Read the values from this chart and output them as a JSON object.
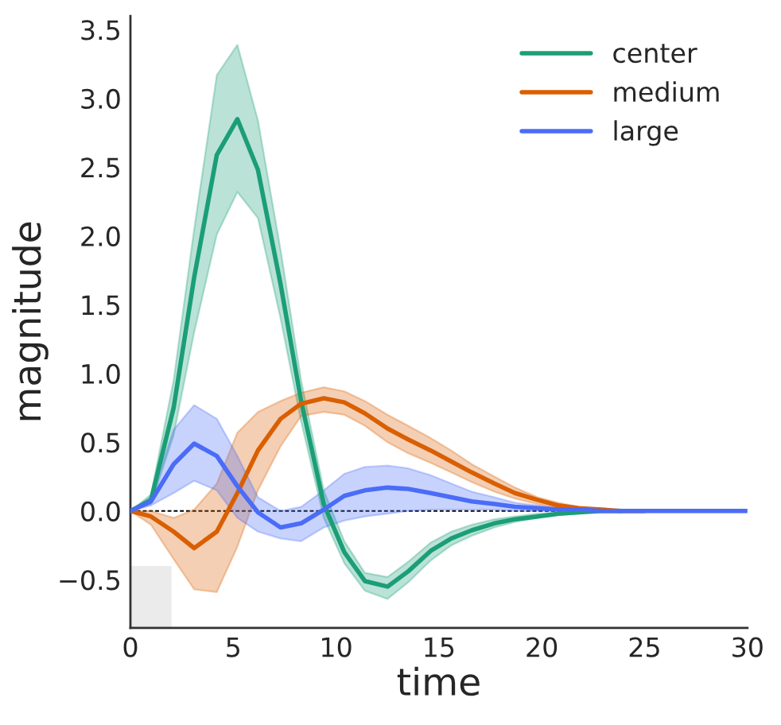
{
  "chart_data": {
    "type": "line",
    "xlabel": "time",
    "ylabel": "magnitude",
    "x": [
      0,
      1,
      2.1,
      3.1,
      4.2,
      5.2,
      6.2,
      7.3,
      8.3,
      9.4,
      10.4,
      11.4,
      12.5,
      13.5,
      14.6,
      15.6,
      16.6,
      17.7,
      18.7,
      19.8,
      20.8,
      21.8,
      22.9,
      23.9,
      25,
      26,
      27,
      28.1,
      29.1,
      30
    ],
    "series": [
      {
        "name": "center",
        "color": "#1b9e77",
        "values": [
          0,
          0.08,
          0.75,
          1.7,
          2.59,
          2.85,
          2.48,
          1.65,
          0.8,
          0.05,
          -0.3,
          -0.51,
          -0.55,
          -0.44,
          -0.29,
          -0.2,
          -0.14,
          -0.09,
          -0.06,
          -0.04,
          -0.02,
          -0.01,
          0,
          0,
          null,
          null,
          null,
          null,
          null,
          null
        ],
        "lower": [
          0,
          0.05,
          0.55,
          1.3,
          2.01,
          2.32,
          2.13,
          1.4,
          0.65,
          -0.05,
          -0.38,
          -0.58,
          -0.64,
          -0.52,
          -0.36,
          -0.25,
          -0.18,
          -0.12,
          -0.08,
          -0.05,
          -0.03,
          -0.02,
          0,
          0,
          null,
          null,
          null,
          null,
          null,
          null
        ],
        "upper": [
          0,
          0.12,
          0.95,
          2.05,
          3.17,
          3.39,
          2.84,
          1.9,
          0.95,
          0.15,
          -0.22,
          -0.45,
          -0.48,
          -0.37,
          -0.23,
          -0.15,
          -0.1,
          -0.06,
          -0.04,
          -0.02,
          -0.01,
          0,
          0,
          0,
          null,
          null,
          null,
          null,
          null,
          null
        ]
      },
      {
        "name": "medium",
        "color": "#d95f02",
        "values": [
          0,
          -0.04,
          -0.15,
          -0.27,
          -0.15,
          0.13,
          0.44,
          0.67,
          0.78,
          0.82,
          0.79,
          0.71,
          0.6,
          0.52,
          0.44,
          0.36,
          0.28,
          0.2,
          0.13,
          0.08,
          0.04,
          0.02,
          0.01,
          0,
          0,
          null,
          null,
          null,
          null,
          null
        ],
        "lower": [
          0,
          -0.1,
          -0.35,
          -0.57,
          -0.59,
          -0.26,
          0.15,
          0.47,
          0.69,
          0.72,
          0.7,
          0.62,
          0.5,
          0.42,
          0.35,
          0.28,
          0.21,
          0.14,
          0.09,
          0.05,
          0.02,
          0.01,
          0,
          0,
          0,
          null,
          null,
          null,
          null,
          null
        ],
        "upper": [
          0,
          0,
          -0.05,
          0.01,
          0.2,
          0.57,
          0.72,
          0.8,
          0.86,
          0.9,
          0.87,
          0.8,
          0.7,
          0.62,
          0.53,
          0.44,
          0.34,
          0.25,
          0.17,
          0.1,
          0.06,
          0.03,
          0.01,
          0,
          0,
          null,
          null,
          null,
          null,
          null
        ]
      },
      {
        "name": "large",
        "color": "#4a6cf7",
        "values": [
          0,
          0.07,
          0.34,
          0.49,
          0.4,
          0.18,
          -0.01,
          -0.12,
          -0.09,
          0.01,
          0.11,
          0.15,
          0.17,
          0.16,
          0.13,
          0.1,
          0.07,
          0.05,
          0.03,
          0.02,
          0.01,
          0.01,
          0,
          0,
          0,
          0,
          0,
          0,
          0,
          0
        ],
        "lower": [
          0,
          0.04,
          0.13,
          0.22,
          0.15,
          -0.05,
          -0.15,
          -0.2,
          -0.22,
          -0.12,
          -0.07,
          -0.04,
          -0.02,
          0,
          0.01,
          0.01,
          0.01,
          0.01,
          0,
          0,
          0,
          0,
          0,
          0,
          0,
          0,
          0,
          0,
          0,
          0
        ],
        "upper": [
          0,
          0.1,
          0.59,
          0.77,
          0.67,
          0.4,
          0.1,
          0,
          0.03,
          0.15,
          0.27,
          0.32,
          0.33,
          0.31,
          0.26,
          0.2,
          0.14,
          0.1,
          0.06,
          0.04,
          0.02,
          0.01,
          0,
          0,
          0,
          0,
          0,
          0,
          0,
          0
        ]
      }
    ],
    "xlim": [
      0,
      30
    ],
    "xticks": [
      0,
      5,
      10,
      15,
      20,
      25,
      30
    ],
    "ylim": [
      -0.85,
      3.6
    ],
    "yticks": [
      {
        "value": -0.5,
        "label": "−0.5"
      },
      {
        "value": 0,
        "label": "0.0"
      },
      0.5,
      {
        "value": 1,
        "label": "1.0"
      },
      1.5,
      {
        "value": 2,
        "label": "2.0"
      },
      2.5,
      {
        "value": 3,
        "label": "3.0"
      },
      3.5
    ],
    "ref_lines": [
      {
        "axis": "y",
        "value": 0,
        "color": "#000000",
        "line_style": "dashed"
      }
    ],
    "bands": [
      {
        "axis": "x",
        "from": 0,
        "to": 2,
        "color": "#ebebeb"
      }
    ],
    "legend": "top right",
    "grid": false
  }
}
